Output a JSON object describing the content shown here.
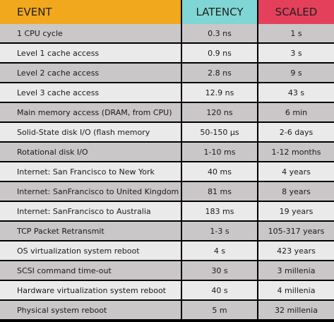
{
  "header": {
    "event": "EVENT",
    "latency": "LATENCY",
    "scaled": "SCALED"
  },
  "rows": [
    {
      "event": "1 CPU cycle",
      "latency": "0.3 ns",
      "scaled": "1 s"
    },
    {
      "event": "Level 1 cache access",
      "latency": "0.9 ns",
      "scaled": "3 s"
    },
    {
      "event": "Level 2 cache access",
      "latency": "2.8 ns",
      "scaled": "9 s"
    },
    {
      "event": "Level 3 cache access",
      "latency": "12.9 ns",
      "scaled": "43 s"
    },
    {
      "event": "Main memory access (DRAM, from CPU)",
      "latency": "120 ns",
      "scaled": "6 min"
    },
    {
      "event": "Solid-State disk I/O (flash memory",
      "latency": "50-150 µs",
      "scaled": "2-6 days"
    },
    {
      "event": "Rotational disk I/O",
      "latency": "1-10 ms",
      "scaled": "1-12 months"
    },
    {
      "event": "Internet: San Francisco to New York",
      "latency": "40 ms",
      "scaled": "4 years"
    },
    {
      "event": "Internet: SanFrancisco to United Kingdom",
      "latency": "81 ms",
      "scaled": "8 years"
    },
    {
      "event": "Internet: SanFrancisco to Australia",
      "latency": "183 ms",
      "scaled": "19 years"
    },
    {
      "event": "TCP Packet Retransmit",
      "latency": "1-3 s",
      "scaled": "105-317 years"
    },
    {
      "event": "OS virtualization system reboot",
      "latency": "4 s",
      "scaled": "423 years"
    },
    {
      "event": "SCSI command time-out",
      "latency": "30 s",
      "scaled": "3 millenia"
    },
    {
      "event": "Hardware virtualization system reboot",
      "latency": "40 s",
      "scaled": "4 millenia"
    },
    {
      "event": "Physical system reboot",
      "latency": "5 m",
      "scaled": "32 millenia"
    }
  ],
  "colors": {
    "event_header": "#f2a81d",
    "latency_header": "#80d6d4",
    "scaled_header": "#e4405c",
    "row_dark": "#c9c7c7",
    "row_light": "#ebeaea"
  }
}
